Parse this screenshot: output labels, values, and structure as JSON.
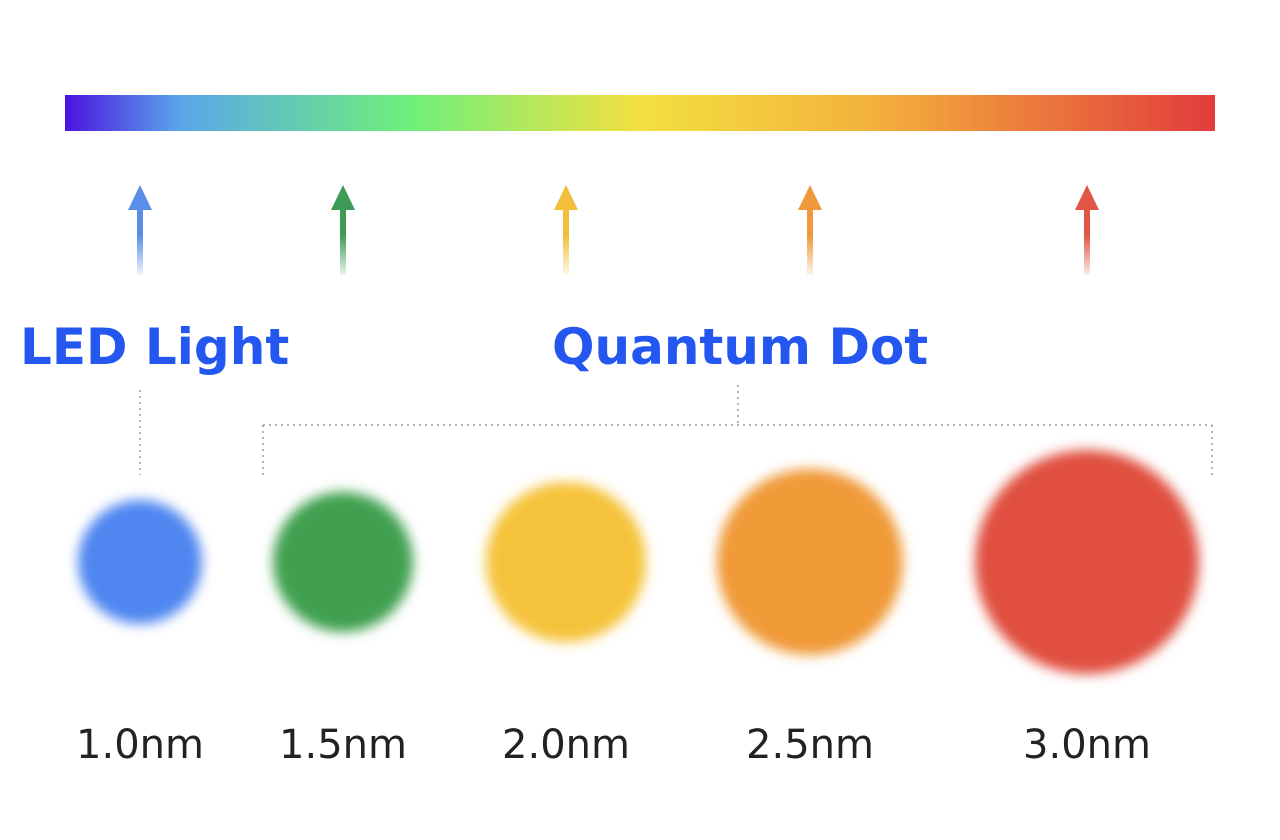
{
  "titles": {
    "led": "LED Light",
    "quantum_dot": "Quantum Dot"
  },
  "dots": [
    "1.0nm",
    "1.5nm",
    "2.0nm",
    "2.5nm",
    "3.0nm"
  ]
}
